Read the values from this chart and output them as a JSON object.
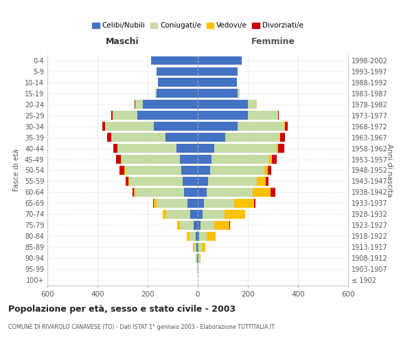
{
  "age_groups": [
    "100+",
    "95-99",
    "90-94",
    "85-89",
    "80-84",
    "75-79",
    "70-74",
    "65-69",
    "60-64",
    "55-59",
    "50-54",
    "45-49",
    "40-44",
    "35-39",
    "30-34",
    "25-29",
    "20-24",
    "15-19",
    "10-14",
    "5-9",
    "0-4"
  ],
  "birth_years": [
    "≤ 1902",
    "1903-1907",
    "1908-1912",
    "1913-1917",
    "1918-1922",
    "1923-1927",
    "1928-1932",
    "1933-1937",
    "1938-1942",
    "1943-1947",
    "1948-1952",
    "1953-1957",
    "1958-1962",
    "1963-1967",
    "1968-1972",
    "1973-1977",
    "1978-1982",
    "1983-1987",
    "1988-1992",
    "1993-1997",
    "1998-2002"
  ],
  "maschi": {
    "celibi": [
      0,
      1,
      3,
      5,
      8,
      17,
      30,
      40,
      55,
      60,
      65,
      70,
      85,
      130,
      175,
      240,
      220,
      165,
      160,
      165,
      185
    ],
    "coniugati": [
      0,
      1,
      4,
      10,
      25,
      55,
      95,
      125,
      195,
      215,
      225,
      235,
      235,
      215,
      195,
      100,
      30,
      5,
      0,
      0,
      0
    ],
    "vedovi": [
      0,
      0,
      2,
      5,
      10,
      10,
      15,
      10,
      5,
      3,
      2,
      2,
      1,
      1,
      1,
      1,
      0,
      0,
      0,
      0,
      0
    ],
    "divorziati": [
      0,
      0,
      0,
      0,
      0,
      0,
      1,
      2,
      5,
      10,
      20,
      20,
      15,
      15,
      10,
      5,
      1,
      0,
      0,
      0,
      0
    ]
  },
  "femmine": {
    "nubili": [
      0,
      1,
      2,
      4,
      6,
      12,
      18,
      25,
      35,
      40,
      50,
      55,
      65,
      110,
      160,
      200,
      200,
      160,
      155,
      160,
      175
    ],
    "coniugate": [
      0,
      1,
      5,
      12,
      30,
      55,
      90,
      120,
      185,
      195,
      215,
      230,
      250,
      215,
      185,
      120,
      35,
      8,
      2,
      0,
      0
    ],
    "vedove": [
      0,
      1,
      5,
      15,
      35,
      60,
      80,
      80,
      70,
      35,
      15,
      10,
      5,
      3,
      2,
      1,
      0,
      0,
      0,
      0,
      0
    ],
    "divorziate": [
      0,
      0,
      0,
      0,
      0,
      1,
      2,
      5,
      20,
      12,
      12,
      20,
      25,
      20,
      12,
      3,
      1,
      0,
      0,
      0,
      0
    ]
  },
  "colors": {
    "celibi_nubili": "#4472c4",
    "coniugati": "#c5dba4",
    "vedovi": "#ffc000",
    "divorziati": "#cc0000"
  },
  "title": "Popolazione per età, sesso e stato civile - 2003",
  "subtitle": "COMUNE DI RIVAROLO CANAVESE (TO) - Dati ISTAT 1° gennaio 2003 - Elaborazione TUTTITALIA.IT",
  "xlabel_left": "Maschi",
  "xlabel_right": "Femmine",
  "ylabel_left": "Fasce di età",
  "ylabel_right": "Anni di nascita",
  "xlim": 600,
  "background_color": "#ffffff",
  "grid_color": "#cccccc",
  "legend_labels": [
    "Celibi/Nubili",
    "Coniugati/e",
    "Vedovi/e",
    "Divorziati/e"
  ]
}
